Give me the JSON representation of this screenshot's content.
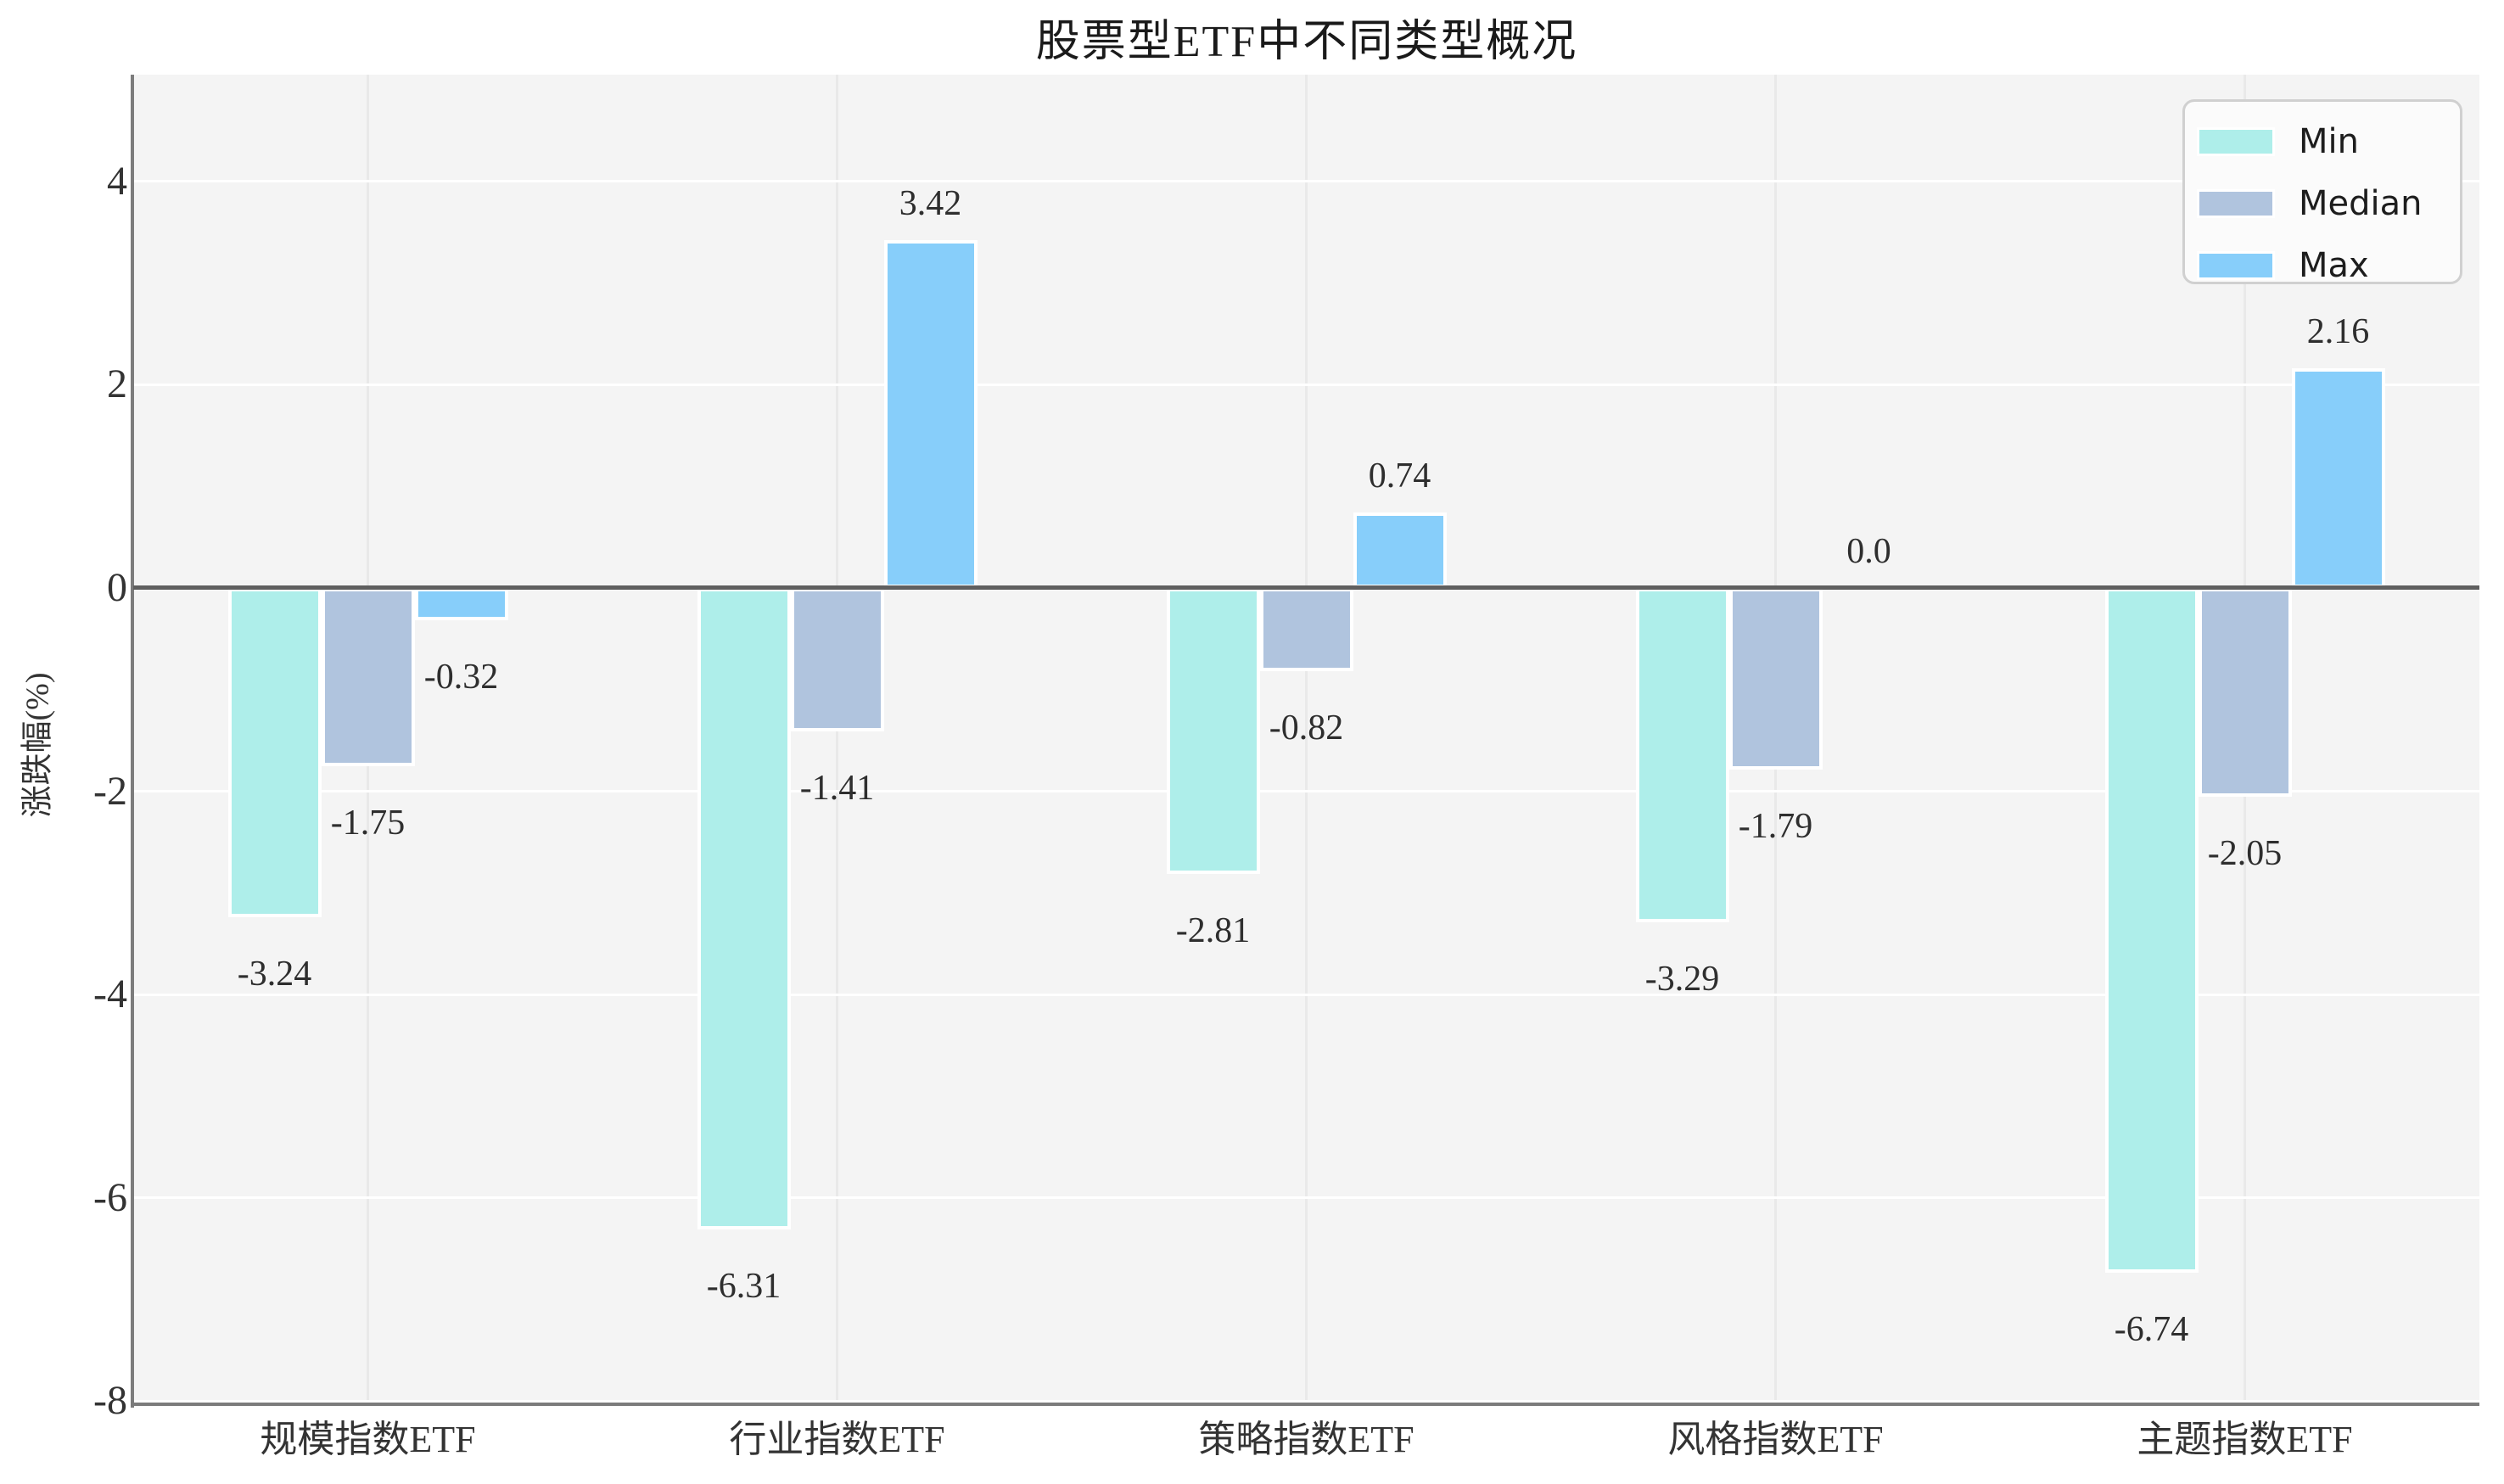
{
  "title": "股票型ETF中不同类型概况",
  "chart_data": {
    "type": "bar",
    "title": "股票型ETF中不同类型概况",
    "ylabel": "涨跌幅(%)",
    "xlabel": "",
    "categories": [
      "规模指数ETF",
      "行业指数ETF",
      "策略指数ETF",
      "风格指数ETF",
      "主题指数ETF"
    ],
    "series": [
      {
        "name": "Min",
        "color": "#aeeeea",
        "values": [
          -3.24,
          -6.31,
          -2.81,
          -3.29,
          -6.74
        ]
      },
      {
        "name": "Median",
        "color": "#b0c4de",
        "values": [
          -1.75,
          -1.41,
          -0.82,
          -1.79,
          -2.05
        ]
      },
      {
        "name": "Max",
        "color": "#87cefa",
        "values": [
          -0.32,
          3.42,
          0.74,
          0.0,
          2.16
        ]
      }
    ],
    "bar_labels": [
      [
        "-3.24",
        "-1.75",
        "-0.32"
      ],
      [
        "-6.31",
        "-1.41",
        "3.42"
      ],
      [
        "-2.81",
        "-0.82",
        "0.74"
      ],
      [
        "-3.29",
        "-1.79",
        "0.0"
      ],
      [
        "-6.74",
        "-2.05",
        "2.16"
      ]
    ],
    "yticks": [
      4,
      2,
      0,
      -2,
      -4,
      -6,
      -8
    ],
    "ylim": [
      -8.03,
      5.05
    ],
    "grid": true,
    "zero_line": true,
    "legend_position": "upper right",
    "background_color": "#f4f4f4",
    "spine_color": "#7c7c7c",
    "zero_line_color": "#5f5f5f"
  }
}
